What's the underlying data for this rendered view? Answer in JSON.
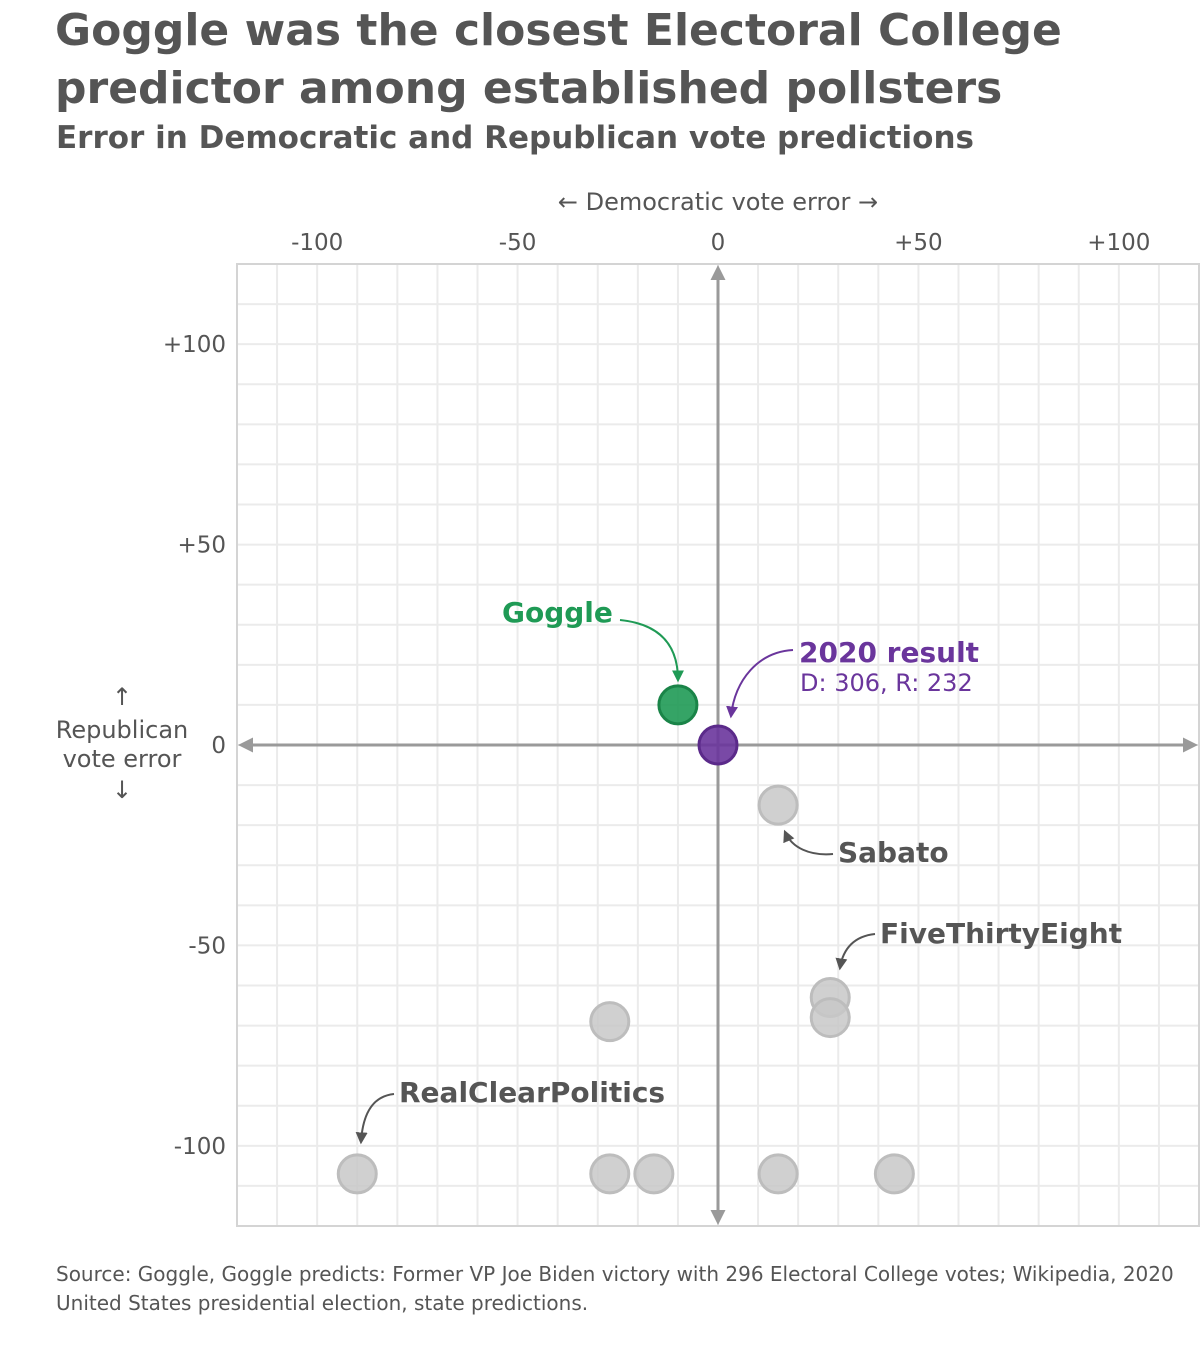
{
  "title": "Goggle was the closest Electoral College predictor among established pollsters",
  "subtitle": "Error in Democratic and Republican vote predictions",
  "source": "Source: Goggle, Goggle predicts: Former VP Joe Biden victory with 296 Electoral College votes; Wikipedia, 2020 United States presidential election, state predictions.",
  "colors": {
    "goggle": "#1f9a55",
    "result": "#6a359c",
    "other": "#c8c8c8",
    "axis": "#9a9a9a",
    "grid": "#ebebeb",
    "text": "#555555"
  },
  "chart_data": {
    "type": "scatter",
    "xlabel": "← Democratic vote error →",
    "ylabel_arrow_up": "↑",
    "ylabel_line1": "Republican",
    "ylabel_line2": "vote error",
    "ylabel_arrow_down": "↓",
    "xlim": [
      -120,
      120
    ],
    "ylim": [
      -120,
      120
    ],
    "xticks": [
      -100,
      -50,
      0,
      50,
      100
    ],
    "xtick_labels": [
      "-100",
      "-50",
      "0",
      "+50",
      "+100"
    ],
    "yticks": [
      100,
      50,
      0,
      -50,
      -100
    ],
    "ytick_labels": [
      "+100",
      "+50",
      "0",
      "-50",
      "-100"
    ],
    "points": [
      {
        "name": "Goggle",
        "x": -10,
        "y": 10,
        "group": "goggle"
      },
      {
        "name": "2020 result",
        "x": 0,
        "y": 0,
        "group": "result"
      },
      {
        "name": "Sabato",
        "x": 15,
        "y": -15,
        "group": "other"
      },
      {
        "name": "FiveThirtyEight",
        "x": 28,
        "y": -63,
        "group": "other"
      },
      {
        "name": "",
        "x": 28,
        "y": -68,
        "group": "other"
      },
      {
        "name": "",
        "x": -27,
        "y": -69,
        "group": "other"
      },
      {
        "name": "RealClearPolitics",
        "x": -90,
        "y": -107,
        "group": "other"
      },
      {
        "name": "",
        "x": -27,
        "y": -107,
        "group": "other"
      },
      {
        "name": "",
        "x": -16,
        "y": -107,
        "group": "other"
      },
      {
        "name": "",
        "x": 15,
        "y": -107,
        "group": "other"
      },
      {
        "name": "",
        "x": 44,
        "y": -107,
        "group": "other"
      }
    ],
    "annotations": {
      "goggle": "Goggle",
      "result": "2020 result",
      "result_detail": "D: 306, R: 232",
      "sabato": "Sabato",
      "fivethirtyeight": "FiveThirtyEight",
      "realclearpolitics": "RealClearPolitics"
    }
  }
}
